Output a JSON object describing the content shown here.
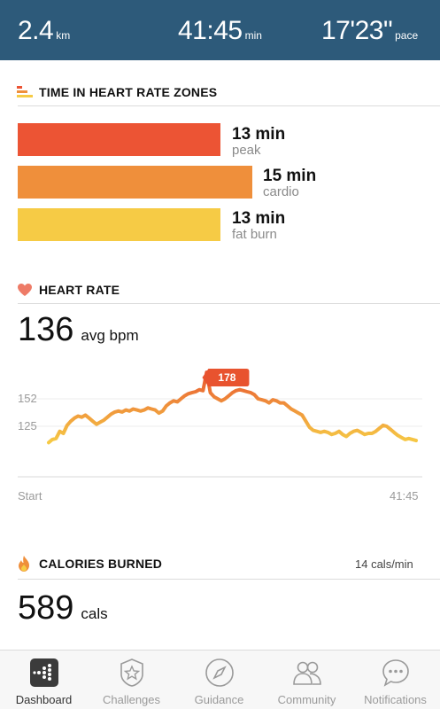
{
  "header": {
    "distance_value": "2.4",
    "distance_unit": "km",
    "duration_value": "41:45",
    "duration_unit": "min",
    "pace_value": "17'23\"",
    "pace_unit": "pace"
  },
  "zones": {
    "title": "TIME IN HEART RATE ZONES",
    "items": [
      {
        "minutes": "13 min",
        "name": "peak",
        "color": "#ec5434"
      },
      {
        "minutes": "15 min",
        "name": "cardio",
        "color": "#ef8f3b"
      },
      {
        "minutes": "13 min",
        "name": "fat burn",
        "color": "#f6cb45"
      }
    ]
  },
  "heart_rate": {
    "title": "HEART RATE",
    "avg_value": "136",
    "avg_unit": "avg bpm",
    "peak_marker": "178",
    "start_label": "Start",
    "end_label": "41:45"
  },
  "calories": {
    "title": "CALORIES BURNED",
    "rate": "14 cals/min",
    "value": "589",
    "unit": "cals"
  },
  "chart_data": {
    "type": "line",
    "title": "HEART RATE",
    "xlabel": "",
    "ylabel": "",
    "x_ticks": [
      "Start",
      "41:45"
    ],
    "y_ticks": [
      125,
      152
    ],
    "ylim": [
      100,
      190
    ],
    "peak_label": "178",
    "series": [
      {
        "color_gradient": [
          "#f6cb45",
          "#ef8f3b",
          "#e8532f"
        ],
        "x": [
          0,
          1,
          2,
          3,
          4,
          5,
          6,
          7,
          8,
          9,
          10,
          11,
          12,
          13,
          14,
          15,
          16,
          17,
          18,
          19,
          20,
          21,
          22,
          23,
          24,
          25,
          26,
          27,
          28,
          29,
          30,
          31,
          32,
          33,
          34,
          35,
          36,
          37,
          38,
          39,
          40,
          41,
          42,
          43,
          44,
          45,
          46,
          47,
          48,
          49,
          50,
          51,
          52,
          53,
          54,
          55,
          56,
          57,
          58,
          59,
          60,
          61,
          62,
          63,
          64,
          65,
          66,
          67,
          68,
          69,
          70,
          71,
          72,
          73,
          74,
          75,
          76,
          77,
          78,
          79,
          80,
          81,
          82,
          83,
          84,
          85,
          86,
          87,
          88,
          89,
          90,
          91,
          92,
          93,
          94,
          95,
          96,
          97,
          98,
          99,
          100
        ],
        "values": [
          109,
          112,
          113,
          120,
          118,
          126,
          130,
          133,
          135,
          134,
          136,
          133,
          130,
          127,
          129,
          131,
          134,
          137,
          139,
          140,
          139,
          141,
          140,
          142,
          141,
          140,
          141,
          143,
          142,
          141,
          138,
          140,
          145,
          148,
          150,
          149,
          152,
          155,
          157,
          158,
          159,
          161,
          160,
          178,
          158,
          154,
          152,
          150,
          152,
          155,
          158,
          160,
          161,
          160,
          159,
          158,
          156,
          152,
          151,
          150,
          148,
          151,
          150,
          148,
          148,
          145,
          142,
          140,
          138,
          136,
          130,
          124,
          121,
          120,
          119,
          120,
          119,
          117,
          118,
          120,
          117,
          115,
          118,
          120,
          121,
          119,
          117,
          118,
          118,
          120,
          123,
          126,
          125,
          122,
          119,
          116,
          114,
          112,
          113,
          112,
          111
        ]
      }
    ]
  },
  "tabs": [
    {
      "label": "Dashboard",
      "icon": "dashboard-icon"
    },
    {
      "label": "Challenges",
      "icon": "star-badge-icon"
    },
    {
      "label": "Guidance",
      "icon": "compass-icon"
    },
    {
      "label": "Community",
      "icon": "people-icon"
    },
    {
      "label": "Notifications",
      "icon": "chat-bubble-icon"
    }
  ]
}
